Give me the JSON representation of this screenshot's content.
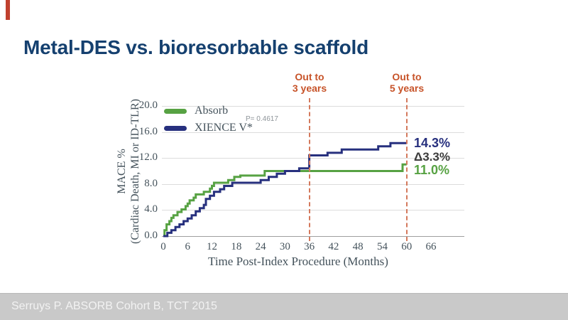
{
  "slide": {
    "title": "Metal-DES vs. bioresorbable scaffold",
    "footer": "Serruys P. ABSORB Cohort B, TCT 2015",
    "accent_color": "#c0402e",
    "title_color": "#15406f"
  },
  "chart_data": {
    "type": "line",
    "subtype": "kaplan-meier-step",
    "xlabel": "Time Post-Index Procedure (Months)",
    "ylabel_line1": "MACE %",
    "ylabel_line2": "(Cardiac Death, MI or ID-TLR)",
    "xlim": [
      0,
      66
    ],
    "ylim": [
      0,
      20
    ],
    "x_ticks": [
      0,
      6,
      12,
      18,
      24,
      30,
      36,
      42,
      48,
      54,
      60,
      66
    ],
    "y_ticks": [
      "0.0",
      "4.0",
      "8.0",
      "12.0",
      "16.0",
      "20.0"
    ],
    "grid": true,
    "legend_position": "top-left",
    "p_value_label": "P= 0.4617",
    "delta_label": "Δ3.3%",
    "series": [
      {
        "name": "Absorb",
        "color": "#57a243",
        "end_label": "11.0%",
        "end_value": 11.0,
        "points": [
          [
            0,
            0
          ],
          [
            0.3,
            0.9
          ],
          [
            0.8,
            1.8
          ],
          [
            1.5,
            2.3
          ],
          [
            2,
            2.8
          ],
          [
            2.5,
            3.2
          ],
          [
            3.5,
            3.7
          ],
          [
            4.5,
            4.1
          ],
          [
            5.5,
            4.6
          ],
          [
            6,
            5.0
          ],
          [
            6.5,
            5.5
          ],
          [
            7.5,
            5.9
          ],
          [
            8,
            6.4
          ],
          [
            10,
            6.8
          ],
          [
            11.5,
            7.3
          ],
          [
            12,
            7.7
          ],
          [
            12.5,
            8.2
          ],
          [
            16,
            8.6
          ],
          [
            17.5,
            9.1
          ],
          [
            19,
            9.3
          ],
          [
            25,
            10.0
          ],
          [
            59,
            11.0
          ],
          [
            60,
            11.0
          ]
        ]
      },
      {
        "name": "XIENCE V*",
        "color": "#27307e",
        "end_label": "14.3%",
        "end_value": 14.3,
        "points": [
          [
            0,
            0
          ],
          [
            1,
            0.5
          ],
          [
            2,
            0.9
          ],
          [
            3,
            1.4
          ],
          [
            4,
            1.8
          ],
          [
            5,
            2.3
          ],
          [
            6,
            2.7
          ],
          [
            7,
            3.2
          ],
          [
            8,
            3.8
          ],
          [
            9,
            4.3
          ],
          [
            10,
            4.8
          ],
          [
            10.5,
            5.7
          ],
          [
            11.5,
            6.2
          ],
          [
            12.5,
            6.8
          ],
          [
            14,
            7.2
          ],
          [
            15,
            7.7
          ],
          [
            17,
            8.2
          ],
          [
            24,
            8.6
          ],
          [
            26,
            9.1
          ],
          [
            28,
            9.6
          ],
          [
            30,
            10.0
          ],
          [
            33.5,
            10.4
          ],
          [
            36,
            12.4
          ],
          [
            40.5,
            12.8
          ],
          [
            44,
            13.3
          ],
          [
            53,
            13.8
          ],
          [
            56,
            14.3
          ],
          [
            60,
            14.3
          ]
        ]
      }
    ],
    "annotations": [
      {
        "line1": "Out to",
        "line2": "3 years",
        "x_month": 36
      },
      {
        "line1": "Out to",
        "line2": "5 years",
        "x_month": 60
      }
    ]
  }
}
